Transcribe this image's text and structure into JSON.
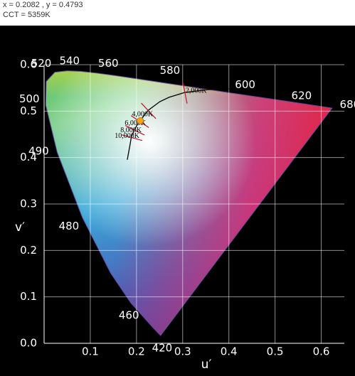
{
  "header": {
    "coords": "x = 0.2082 , y = 0.4793",
    "cct": "CCT = 5359K"
  },
  "chart_data": {
    "type": "chromaticity",
    "x_label": "u′",
    "y_label": "v′",
    "xlim": [
      0,
      0.65
    ],
    "ylim": [
      0,
      0.6
    ],
    "xticks": [
      0.1,
      0.2,
      0.3,
      0.4,
      0.5,
      0.6
    ],
    "yticks": [
      {
        "value": 0,
        "label": "0.0"
      },
      0.1,
      0.2,
      0.3,
      0.4,
      0.5,
      0.6
    ],
    "grid": true,
    "locus": {
      "x": [
        0.2522,
        0.2347,
        0.1877,
        0.1441,
        0.0828,
        0.0282,
        0.0035,
        0.0046,
        0.0231,
        0.0501,
        0.0792,
        0.1127,
        0.1531,
        0.2026,
        0.2623,
        0.3315,
        0.4035,
        0.5203,
        0.6234
      ],
      "values": [
        0.0169,
        0.035,
        0.0871,
        0.151,
        0.2708,
        0.4117,
        0.5131,
        0.5638,
        0.5837,
        0.5868,
        0.5856,
        0.5821,
        0.5766,
        0.5694,
        0.5604,
        0.5501,
        0.5393,
        0.5219,
        0.5065
      ],
      "labels": [
        "420",
        null,
        "460",
        null,
        "480",
        "490",
        "500",
        null,
        "520",
        null,
        "540",
        null,
        "560",
        null,
        "580",
        null,
        "600",
        "620",
        "680"
      ]
    },
    "planckian": {
      "color": "#000000",
      "isotherm_color": "#c8102e",
      "x": [
        0.1801,
        0.1854,
        0.1887,
        0.1951,
        0.2062,
        0.2118,
        0.2251,
        0.2506,
        0.2704,
        0.3048,
        0.3565,
        0.4
      ],
      "values": [
        0.3954,
        0.4245,
        0.4432,
        0.4595,
        0.4782,
        0.4843,
        0.5016,
        0.5204,
        0.5298,
        0.5403,
        0.5465,
        0.548
      ],
      "labels": [
        null,
        null,
        "10,000K",
        "8,000K",
        "6,000K",
        null,
        "4,000K",
        null,
        null,
        "2,000K",
        null,
        null
      ]
    },
    "point": {
      "u": 0.2082,
      "v": 0.4793,
      "color": "#f7a21b"
    }
  }
}
